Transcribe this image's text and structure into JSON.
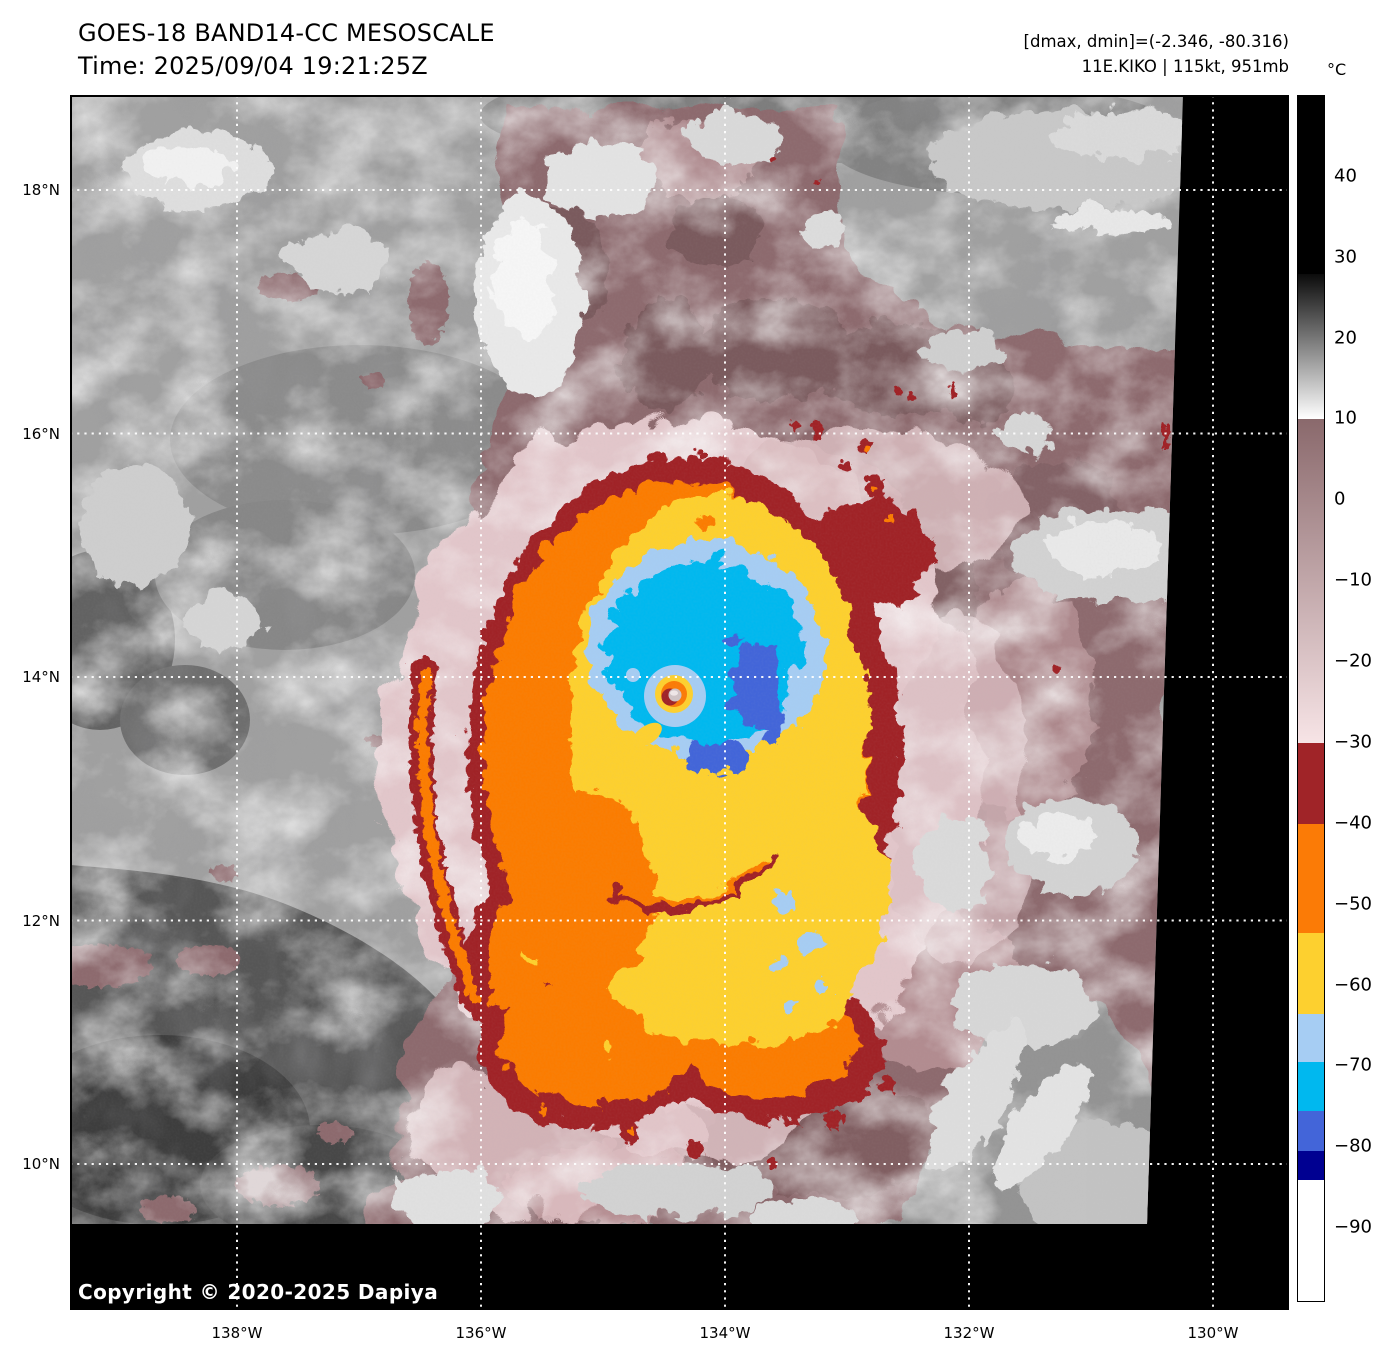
{
  "header": {
    "title": "GOES-18 BAND14-CC MESOSCALE",
    "time": "Time: 2025/09/04 19:21:25Z",
    "range_line": "[dmax, dmin]=(-2.346, -80.316)",
    "storm_line": "11E.KIKO | 115kt, 951mb"
  },
  "colorbar": {
    "unit": "°C",
    "top_value": 50,
    "bottom_value": -99,
    "ticks": [
      40,
      30,
      20,
      10,
      0,
      -10,
      -20,
      -30,
      -40,
      -50,
      -60,
      -70,
      -80,
      -90
    ],
    "segments": [
      {
        "from": 50,
        "to": 28,
        "color": "#000000"
      },
      {
        "from": 28,
        "to": 10,
        "color": "#0b0b0b",
        "color_to": "#ffffff"
      },
      {
        "from": 10,
        "to": -30,
        "color": "#8a696c",
        "color_to": "#f7e4e6"
      },
      {
        "from": -30,
        "to": -40,
        "color": "#a02428"
      },
      {
        "from": -40,
        "to": -53.5,
        "color": "#fb7b06"
      },
      {
        "from": -53.5,
        "to": -63.5,
        "color": "#fdd02f"
      },
      {
        "from": -63.5,
        "to": -69.5,
        "color": "#a6cdf3"
      },
      {
        "from": -69.5,
        "to": -75.5,
        "color": "#00b8ef"
      },
      {
        "from": -75.5,
        "to": -80.5,
        "color": "#4365d9"
      },
      {
        "from": -80.5,
        "to": -84,
        "color": "#000091"
      },
      {
        "from": -84,
        "to": -99,
        "color": "#ffffff"
      }
    ]
  },
  "axes": {
    "x_ticks": [
      {
        "label": "138°W",
        "lon": -138
      },
      {
        "label": "136°W",
        "lon": -136
      },
      {
        "label": "134°W",
        "lon": -134
      },
      {
        "label": "132°W",
        "lon": -132
      },
      {
        "label": "130°W",
        "lon": -130
      }
    ],
    "y_ticks": [
      {
        "label": "18°N",
        "lat": 18
      },
      {
        "label": "16°N",
        "lat": 16
      },
      {
        "label": "14°N",
        "lat": 14
      },
      {
        "label": "12°N",
        "lat": 12
      },
      {
        "label": "10°N",
        "lat": 10
      }
    ]
  },
  "map": {
    "copyright": "Copyright © 2020-2025 Dapiya"
  },
  "chart_data": {
    "type": "heatmap",
    "title": "GOES-18 BAND14-CC MESOSCALE",
    "subtitle": "Time: 2025/09/04 19:21:25Z",
    "satellite": "GOES-18",
    "band": "BAND14-CC",
    "sector": "MESOSCALE",
    "timestamp_utc": "2025/09/04 19:21:25Z",
    "units": "°C",
    "dmax_c": -2.346,
    "dmin_c": -80.316,
    "storm": {
      "designation": "11E",
      "name": "KIKO",
      "intensity_kt": 115,
      "min_pressure_mb": 951,
      "center_lon_deg": -134.4,
      "center_lat_deg": 13.85
    },
    "lon_range_deg": [
      -139.4,
      -129.4
    ],
    "lat_range_deg": [
      8.8,
      18.8
    ],
    "gridline_lons_deg": [
      -138,
      -136,
      -134,
      -132,
      -130
    ],
    "gridline_lats_deg": [
      18,
      16,
      14,
      12,
      10
    ],
    "grid": "white dotted graticule every 2 degrees",
    "colorbar_range_c": [
      50,
      -99
    ],
    "enhancement_scale": [
      {
        "from_c": 50,
        "to_c": 28,
        "color": "#000000",
        "meaning": "warm, black"
      },
      {
        "from_c": 28,
        "to_c": 10,
        "color": "black-to-white gradient"
      },
      {
        "from_c": 10,
        "to_c": -30,
        "color": "dark-mauve-to-pale-pink gradient"
      },
      {
        "from_c": -30,
        "to_c": -40,
        "color": "#a02428"
      },
      {
        "from_c": -40,
        "to_c": -53.5,
        "color": "#fb7b06"
      },
      {
        "from_c": -53.5,
        "to_c": -63.5,
        "color": "#fdd02f"
      },
      {
        "from_c": -63.5,
        "to_c": -69.5,
        "color": "#a6cdf3"
      },
      {
        "from_c": -69.5,
        "to_c": -75.5,
        "color": "#00b8ef"
      },
      {
        "from_c": -75.5,
        "to_c": -80.5,
        "color": "#4365d9"
      },
      {
        "from_c": -80.5,
        "to_c": -84,
        "color": "#000091"
      },
      {
        "from_c": -84,
        "to_c": -99,
        "color": "#ffffff"
      }
    ],
    "features": [
      "Hurricane Kiko eye near 134.4W 13.85N with warm gray eye pixel ringed by orange and yellow",
      "Cold CDO: cyan/royal-blue ring inside light blue, surrounded by yellow, orange and dark red bands",
      "Mauve cirrus shield east and south of storm with scattered white cloud patches",
      "Gray warm low clouds northwest and dark warm ocean southwest corner",
      "Data void filled black along slanted right edge and bottom strip"
    ]
  }
}
